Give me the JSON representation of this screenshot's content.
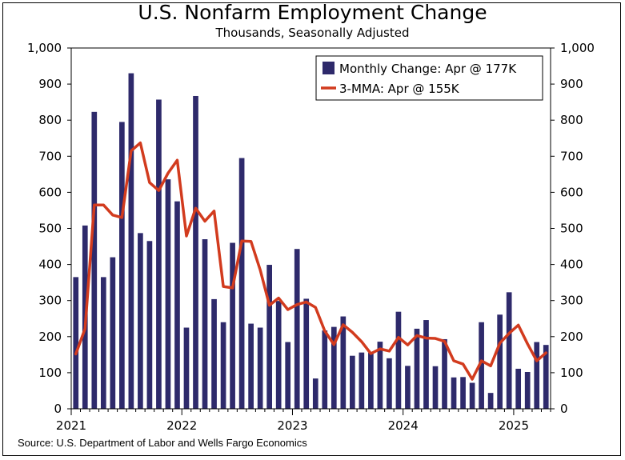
{
  "chart_data": {
    "type": "bar",
    "title": "U.S. Nonfarm Employment Change",
    "subtitle": "Thousands, Seasonally Adjusted",
    "ylim": [
      0,
      1000
    ],
    "yticks": [
      "0",
      "100",
      "200",
      "300",
      "400",
      "500",
      "600",
      "700",
      "800",
      "900",
      "1,000"
    ],
    "xticks": [
      "2021",
      "2022",
      "2023",
      "2024",
      "2025"
    ],
    "start": "2021-01",
    "series": [
      {
        "name": "Monthly Change: Apr @ 177K",
        "kind": "bar",
        "color": "#2e2a6b",
        "values": [
          365,
          508,
          823,
          365,
          420,
          795,
          930,
          487,
          465,
          857,
          636,
          575,
          225,
          867,
          470,
          304,
          240,
          460,
          695,
          236,
          225,
          399,
          299,
          185,
          443,
          305,
          84,
          217,
          227,
          256,
          147,
          156,
          155,
          186,
          140,
          269,
          119,
          222,
          246,
          118,
          193,
          87,
          88,
          72,
          240,
          44,
          261,
          323,
          111,
          102,
          185,
          177
        ]
      },
      {
        "name": "3-MMA: Apr @ 155K",
        "kind": "line",
        "color": "#d23b1e",
        "values": [
          152,
          222,
          565,
          565,
          537,
          530,
          715,
          737,
          627,
          605,
          653,
          689,
          479,
          556,
          520,
          548,
          339,
          335,
          465,
          464,
          385,
          287,
          307,
          275,
          289,
          296,
          281,
          216,
          178,
          233,
          212,
          186,
          153,
          166,
          160,
          198,
          177,
          203,
          196,
          195,
          187,
          133,
          124,
          82,
          133,
          119,
          182,
          209,
          232,
          180,
          133,
          155
        ]
      }
    ],
    "source": "Source: U.S. Department of Labor and Wells Fargo Economics"
  }
}
